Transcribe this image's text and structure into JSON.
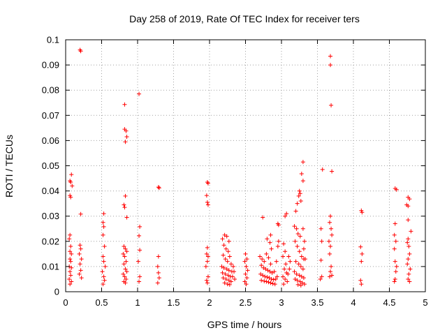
{
  "chart_data": {
    "type": "scatter",
    "title": "Day 258 of 2019, Rate Of TEC Index for receiver ters",
    "xlabel": "GPS time / hours",
    "ylabel": "ROTI / TECUs",
    "xlim": [
      0,
      5
    ],
    "ylim": [
      0,
      0.1
    ],
    "xticks": [
      0,
      0.5,
      1,
      1.5,
      2,
      2.5,
      3,
      3.5,
      4,
      4.5,
      5
    ],
    "xtick_labels": [
      "0",
      "0.5",
      "1",
      "1.5",
      "2",
      "2.5",
      "3",
      "3.5",
      "4",
      "4.5",
      "5"
    ],
    "yticks": [
      0,
      0.01,
      0.02,
      0.03,
      0.04,
      0.05,
      0.06,
      0.07,
      0.08,
      0.09,
      0.1
    ],
    "ytick_labels": [
      "0",
      "0.01",
      "0.02",
      "0.03",
      "0.04",
      "0.05",
      "0.06",
      "0.07",
      "0.08",
      "0.09",
      "0.1"
    ],
    "grid": true,
    "marker": "+",
    "color": "#ff0000",
    "series": [
      {
        "name": "ROTI",
        "points": [
          [
            0.2,
            0.096
          ],
          [
            0.21,
            0.0955
          ],
          [
            3.68,
            0.0935
          ],
          [
            3.68,
            0.09
          ],
          [
            3.69,
            0.074
          ],
          [
            1.02,
            0.0785
          ],
          [
            0.82,
            0.0743
          ],
          [
            0.82,
            0.0645
          ],
          [
            0.84,
            0.0638
          ],
          [
            0.85,
            0.0615
          ],
          [
            0.83,
            0.0595
          ],
          [
            3.3,
            0.0515
          ],
          [
            3.57,
            0.0485
          ],
          [
            3.7,
            0.0478
          ],
          [
            3.28,
            0.0468
          ],
          [
            3.3,
            0.044
          ],
          [
            0.08,
            0.0465
          ],
          [
            0.06,
            0.044
          ],
          [
            0.07,
            0.0435
          ],
          [
            0.09,
            0.042
          ],
          [
            0.06,
            0.0382
          ],
          [
            0.07,
            0.0375
          ],
          [
            1.29,
            0.0415
          ],
          [
            1.3,
            0.0412
          ],
          [
            1.97,
            0.0435
          ],
          [
            1.98,
            0.043
          ],
          [
            1.96,
            0.0382
          ],
          [
            1.97,
            0.0355
          ],
          [
            1.98,
            0.0345
          ],
          [
            4.58,
            0.041
          ],
          [
            4.6,
            0.0405
          ],
          [
            4.76,
            0.0375
          ],
          [
            4.78,
            0.0368
          ],
          [
            4.74,
            0.0345
          ],
          [
            4.76,
            0.034
          ],
          [
            3.25,
            0.04
          ],
          [
            3.26,
            0.039
          ],
          [
            3.24,
            0.038
          ],
          [
            3.27,
            0.036
          ],
          [
            3.22,
            0.035
          ],
          [
            3.2,
            0.032
          ],
          [
            0.83,
            0.038
          ],
          [
            0.81,
            0.0345
          ],
          [
            0.82,
            0.0335
          ],
          [
            0.85,
            0.0295
          ],
          [
            0.21,
            0.0308
          ],
          [
            0.53,
            0.031
          ],
          [
            0.52,
            0.0275
          ],
          [
            0.53,
            0.0258
          ],
          [
            0.52,
            0.0225
          ],
          [
            0.54,
            0.018
          ],
          [
            1.03,
            0.0258
          ],
          [
            1.02,
            0.0222
          ],
          [
            1.03,
            0.0165
          ],
          [
            1.01,
            0.012
          ],
          [
            1.03,
            0.006
          ],
          [
            1.02,
            0.004
          ],
          [
            1.29,
            0.014
          ],
          [
            1.28,
            0.01
          ],
          [
            1.29,
            0.0075
          ],
          [
            1.3,
            0.0055
          ],
          [
            1.28,
            0.0035
          ],
          [
            4.11,
            0.0322
          ],
          [
            4.12,
            0.0315
          ],
          [
            4.1,
            0.0178
          ],
          [
            4.12,
            0.015
          ],
          [
            4.11,
            0.012
          ],
          [
            4.1,
            0.0045
          ],
          [
            4.11,
            0.003
          ],
          [
            3.07,
            0.031
          ],
          [
            3.05,
            0.03
          ],
          [
            2.74,
            0.0295
          ],
          [
            2.85,
            0.0225
          ],
          [
            2.8,
            0.021
          ],
          [
            2.95,
            0.027
          ],
          [
            2.96,
            0.0265
          ],
          [
            3.55,
            0.025
          ],
          [
            3.56,
            0.02
          ],
          [
            3.55,
            0.0125
          ],
          [
            3.56,
            0.006
          ],
          [
            3.54,
            0.005
          ],
          [
            3.68,
            0.03
          ],
          [
            3.67,
            0.0275
          ],
          [
            3.69,
            0.025
          ],
          [
            3.7,
            0.0225
          ],
          [
            3.66,
            0.02
          ],
          [
            3.68,
            0.018
          ],
          [
            3.67,
            0.015
          ],
          [
            3.69,
            0.01
          ],
          [
            3.68,
            0.008
          ],
          [
            3.7,
            0.0065
          ],
          [
            3.67,
            0.006
          ],
          [
            4.76,
            0.0285
          ],
          [
            4.58,
            0.027
          ],
          [
            4.57,
            0.0225
          ],
          [
            4.59,
            0.02
          ],
          [
            4.57,
            0.017
          ],
          [
            4.58,
            0.012
          ],
          [
            4.6,
            0.01
          ],
          [
            4.59,
            0.008
          ],
          [
            4.58,
            0.005
          ],
          [
            4.57,
            0.004
          ],
          [
            4.76,
            0.021
          ],
          [
            4.75,
            0.0195
          ],
          [
            4.77,
            0.018
          ],
          [
            4.78,
            0.015
          ],
          [
            4.76,
            0.013
          ],
          [
            4.75,
            0.011
          ],
          [
            4.79,
            0.009
          ],
          [
            4.77,
            0.007
          ],
          [
            4.76,
            0.005
          ],
          [
            4.78,
            0.004
          ],
          [
            4.8,
            0.024
          ],
          [
            0.06,
            0.0225
          ],
          [
            0.05,
            0.021
          ],
          [
            0.07,
            0.018
          ],
          [
            0.06,
            0.016
          ],
          [
            0.08,
            0.015
          ],
          [
            0.06,
            0.013
          ],
          [
            0.07,
            0.012
          ],
          [
            0.05,
            0.01
          ],
          [
            0.08,
            0.0095
          ],
          [
            0.06,
            0.008
          ],
          [
            0.07,
            0.0065
          ],
          [
            0.05,
            0.005
          ],
          [
            0.08,
            0.004
          ],
          [
            0.06,
            0.003
          ],
          [
            0.2,
            0.0185
          ],
          [
            0.21,
            0.017
          ],
          [
            0.19,
            0.015
          ],
          [
            0.22,
            0.013
          ],
          [
            0.2,
            0.011
          ],
          [
            0.21,
            0.0085
          ],
          [
            0.19,
            0.007
          ],
          [
            0.22,
            0.0055
          ],
          [
            0.52,
            0.014
          ],
          [
            0.53,
            0.012
          ],
          [
            0.55,
            0.01
          ],
          [
            0.51,
            0.008
          ],
          [
            0.53,
            0.006
          ],
          [
            0.54,
            0.0045
          ],
          [
            0.52,
            0.003
          ],
          [
            0.81,
            0.018
          ],
          [
            0.83,
            0.017
          ],
          [
            0.85,
            0.016
          ],
          [
            0.8,
            0.015
          ],
          [
            0.82,
            0.014
          ],
          [
            0.84,
            0.012
          ],
          [
            0.81,
            0.011
          ],
          [
            0.83,
            0.009
          ],
          [
            0.85,
            0.008
          ],
          [
            0.8,
            0.007
          ],
          [
            0.82,
            0.006
          ],
          [
            0.84,
            0.005
          ],
          [
            0.81,
            0.004
          ],
          [
            0.83,
            0.0035
          ],
          [
            1.97,
            0.0175
          ],
          [
            1.96,
            0.015
          ],
          [
            1.98,
            0.014
          ],
          [
            1.97,
            0.012
          ],
          [
            1.95,
            0.01
          ],
          [
            1.98,
            0.006
          ],
          [
            1.96,
            0.0045
          ],
          [
            1.97,
            0.0035
          ],
          [
            2.18,
            0.021
          ],
          [
            2.21,
            0.0225
          ],
          [
            2.24,
            0.022
          ],
          [
            2.27,
            0.02
          ],
          [
            2.2,
            0.0185
          ],
          [
            2.23,
            0.017
          ],
          [
            2.26,
            0.016
          ],
          [
            2.19,
            0.0145
          ],
          [
            2.28,
            0.014
          ],
          [
            2.22,
            0.013
          ],
          [
            2.25,
            0.012
          ],
          [
            2.3,
            0.011
          ],
          [
            2.17,
            0.01
          ],
          [
            2.2,
            0.0095
          ],
          [
            2.24,
            0.009
          ],
          [
            2.27,
            0.0085
          ],
          [
            2.31,
            0.008
          ],
          [
            2.18,
            0.0075
          ],
          [
            2.22,
            0.007
          ],
          [
            2.26,
            0.0065
          ],
          [
            2.29,
            0.006
          ],
          [
            2.19,
            0.0055
          ],
          [
            2.23,
            0.005
          ],
          [
            2.27,
            0.0045
          ],
          [
            2.3,
            0.004
          ],
          [
            2.21,
            0.0035
          ],
          [
            2.25,
            0.003
          ],
          [
            2.28,
            0.0028
          ],
          [
            2.33,
            0.01
          ],
          [
            2.34,
            0.008
          ],
          [
            2.32,
            0.006
          ],
          [
            2.35,
            0.005
          ],
          [
            2.5,
            0.015
          ],
          [
            2.52,
            0.013
          ],
          [
            2.49,
            0.012
          ],
          [
            2.51,
            0.01
          ],
          [
            2.53,
            0.0085
          ],
          [
            2.5,
            0.007
          ],
          [
            2.52,
            0.0055
          ],
          [
            2.49,
            0.004
          ],
          [
            2.51,
            0.003
          ],
          [
            2.7,
            0.014
          ],
          [
            2.73,
            0.013
          ],
          [
            2.76,
            0.012
          ],
          [
            2.79,
            0.015
          ],
          [
            2.82,
            0.0135
          ],
          [
            2.85,
            0.011
          ],
          [
            2.72,
            0.0105
          ],
          [
            2.75,
            0.0095
          ],
          [
            2.78,
            0.009
          ],
          [
            2.81,
            0.0085
          ],
          [
            2.84,
            0.008
          ],
          [
            2.87,
            0.0075
          ],
          [
            2.71,
            0.007
          ],
          [
            2.74,
            0.0065
          ],
          [
            2.77,
            0.006
          ],
          [
            2.8,
            0.0058
          ],
          [
            2.83,
            0.0055
          ],
          [
            2.86,
            0.005
          ],
          [
            2.89,
            0.0048
          ],
          [
            2.72,
            0.0045
          ],
          [
            2.76,
            0.0042
          ],
          [
            2.79,
            0.004
          ],
          [
            2.82,
            0.0038
          ],
          [
            2.85,
            0.0035
          ],
          [
            2.88,
            0.0032
          ],
          [
            2.91,
            0.003
          ],
          [
            2.94,
            0.006
          ],
          [
            2.92,
            0.005
          ],
          [
            2.9,
            0.008
          ],
          [
            2.93,
            0.012
          ],
          [
            2.95,
            0.018
          ],
          [
            2.96,
            0.02
          ],
          [
            2.84,
            0.0195
          ],
          [
            2.86,
            0.017
          ],
          [
            3.03,
            0.019
          ],
          [
            3.05,
            0.016
          ],
          [
            3.02,
            0.014
          ],
          [
            3.06,
            0.011
          ],
          [
            3.04,
            0.009
          ],
          [
            3.07,
            0.0075
          ],
          [
            3.02,
            0.006
          ],
          [
            3.05,
            0.005
          ],
          [
            3.08,
            0.004
          ],
          [
            3.03,
            0.003
          ],
          [
            3.1,
            0.014
          ],
          [
            3.12,
            0.012
          ],
          [
            3.11,
            0.009
          ],
          [
            3.09,
            0.007
          ],
          [
            3.18,
            0.026
          ],
          [
            3.21,
            0.025
          ],
          [
            3.23,
            0.023
          ],
          [
            3.26,
            0.022
          ],
          [
            3.19,
            0.02
          ],
          [
            3.22,
            0.018
          ],
          [
            3.25,
            0.016
          ],
          [
            3.28,
            0.014
          ],
          [
            3.31,
            0.013
          ],
          [
            3.2,
            0.012
          ],
          [
            3.24,
            0.011
          ],
          [
            3.27,
            0.01
          ],
          [
            3.3,
            0.009
          ],
          [
            3.18,
            0.008
          ],
          [
            3.21,
            0.007
          ],
          [
            3.25,
            0.0065
          ],
          [
            3.28,
            0.006
          ],
          [
            3.31,
            0.0055
          ],
          [
            3.19,
            0.005
          ],
          [
            3.22,
            0.0045
          ],
          [
            3.26,
            0.004
          ],
          [
            3.29,
            0.0035
          ],
          [
            3.32,
            0.003
          ],
          [
            3.23,
            0.0028
          ],
          [
            3.27,
            0.0025
          ],
          [
            3.3,
            0.025
          ],
          [
            3.32,
            0.02
          ],
          [
            3.33,
            0.013
          ],
          [
            3.31,
            0.017
          ]
        ]
      }
    ]
  }
}
